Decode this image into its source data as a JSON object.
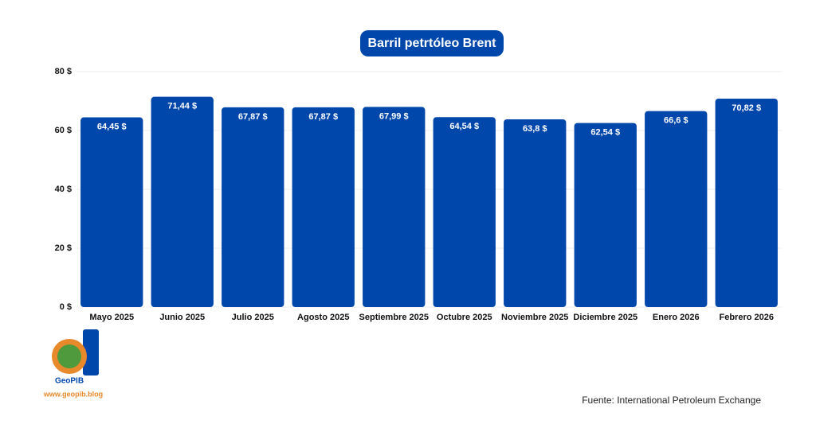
{
  "chart_data": {
    "type": "bar",
    "title": "Barril petrtóleo Brent",
    "categories": [
      "Mayo 2025",
      "Junio 2025",
      "Julio 2025",
      "Agosto 2025",
      "Septiembre 2025",
      "Octubre 2025",
      "Noviembre 2025",
      "Diciembre 2025",
      "Enero 2026",
      "Febrero 2026"
    ],
    "values": [
      64.45,
      71.44,
      67.87,
      67.87,
      67.99,
      64.54,
      63.8,
      62.54,
      66.6,
      70.82
    ],
    "value_labels": [
      "64,45 $",
      "71,44 $",
      "67,87 $",
      "67,87 $",
      "67,99 $",
      "64,54 $",
      "63,8 $",
      "62,54 $",
      "66,6 $",
      "70,82 $"
    ],
    "color": "#0047ab",
    "ylim": [
      0,
      80
    ],
    "yticks": [
      {
        "value": 0,
        "label": "0 $"
      },
      {
        "value": 20,
        "label": "20 $"
      },
      {
        "value": 40,
        "label": "40 $"
      },
      {
        "value": 60,
        "label": "60 $"
      },
      {
        "value": 80,
        "label": "80 $"
      }
    ],
    "grid": true,
    "source": "Fuente: International Petroleum Exchange",
    "logo_name": "GeoPIB",
    "logo_url": "www.geopib.blog"
  }
}
